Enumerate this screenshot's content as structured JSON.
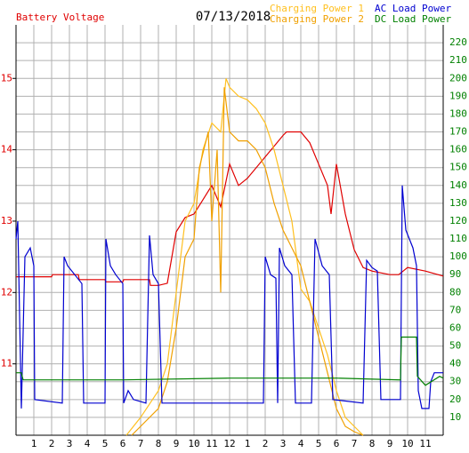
{
  "chart_data": {
    "type": "line",
    "date": "07/13/2018",
    "xlim": [
      0,
      24
    ],
    "xticks": [
      1,
      2,
      3,
      4,
      5,
      6,
      7,
      8,
      9,
      10,
      11,
      12,
      {
        "value": 13,
        "label": "1"
      },
      {
        "value": 14,
        "label": "2"
      },
      {
        "value": 15,
        "label": "3"
      },
      {
        "value": 16,
        "label": "4"
      },
      {
        "value": 17,
        "label": "5"
      },
      {
        "value": 18,
        "label": "6"
      },
      {
        "value": 19,
        "label": "7"
      },
      {
        "value": 20,
        "label": "8"
      },
      {
        "value": 21,
        "label": "9"
      },
      {
        "value": 22,
        "label": "10"
      },
      {
        "value": 23,
        "label": "11"
      }
    ],
    "ylim": [
      10,
      15.75
    ],
    "yticks": [
      11,
      12,
      13,
      14,
      15
    ],
    "y2lim": [
      0,
      230
    ],
    "y2ticks": [
      10,
      20,
      30,
      40,
      50,
      60,
      70,
      80,
      90,
      100,
      110,
      120,
      130,
      140,
      150,
      160,
      170,
      180,
      190,
      200,
      210,
      220
    ],
    "grid": true,
    "series": [
      {
        "name": "Battery Voltage",
        "color": "#e00000",
        "axis": "y",
        "x": [
          0,
          2,
          2.05,
          3.5,
          3.55,
          5,
          5.05,
          6,
          6.05,
          7.5,
          7.55,
          8,
          8.5,
          9,
          9.5,
          10,
          10.5,
          11,
          11.5,
          12,
          12.5,
          13,
          14,
          14.5,
          15,
          15.2,
          16,
          16.5,
          17,
          17.5,
          17.7,
          18,
          18.5,
          19,
          19.5,
          20,
          21,
          21.5,
          22,
          23,
          24
        ],
        "values": [
          12.22,
          12.22,
          12.25,
          12.25,
          12.18,
          12.18,
          12.15,
          12.15,
          12.18,
          12.18,
          12.1,
          12.1,
          12.13,
          12.85,
          13.05,
          13.1,
          13.3,
          13.5,
          13.2,
          13.8,
          13.5,
          13.6,
          13.9,
          14.05,
          14.2,
          14.25,
          14.25,
          14.1,
          13.8,
          13.5,
          13.1,
          13.8,
          13.1,
          12.6,
          12.35,
          12.3,
          12.25,
          12.25,
          12.35,
          12.3,
          12.23
        ]
      },
      {
        "name": "Charging Power 1",
        "color": "#ffc020",
        "axis": "y2",
        "x": [
          6.2,
          7,
          8,
          8.5,
          9,
          9.5,
          10,
          10.5,
          11,
          11.5,
          11.8,
          12,
          12.5,
          13,
          13.5,
          14,
          14.5,
          15,
          15.5,
          16,
          16.5,
          17,
          17.5,
          18,
          18.5,
          19,
          19.5
        ],
        "values": [
          0,
          10,
          25,
          40,
          80,
          120,
          130,
          160,
          175,
          170,
          200,
          195,
          190,
          188,
          183,
          175,
          160,
          140,
          120,
          82,
          75,
          60,
          45,
          25,
          10,
          5,
          0
        ]
      },
      {
        "name": "Charging Power 2",
        "color": "#f0a000",
        "axis": "y2",
        "x": [
          6.5,
          7,
          8,
          8.5,
          9,
          9.5,
          10,
          10.3,
          10.8,
          11,
          11.3,
          11.5,
          11.7,
          12,
          12.5,
          13,
          13.5,
          14,
          14.5,
          15,
          15.5,
          16,
          16.5,
          17,
          17.5,
          18,
          18.5,
          19,
          19.5
        ],
        "values": [
          0,
          5,
          15,
          30,
          60,
          100,
          110,
          150,
          170,
          120,
          160,
          80,
          195,
          170,
          165,
          165,
          160,
          150,
          130,
          115,
          105,
          95,
          75,
          55,
          35,
          15,
          5,
          2,
          0
        ]
      },
      {
        "name": "AC Load Power",
        "color": "#0000d0",
        "axis": "y2",
        "x": [
          0,
          0.1,
          0.3,
          0.5,
          0.8,
          1,
          1.05,
          2.6,
          2.7,
          2.9,
          3.7,
          3.8,
          5,
          5.05,
          5.3,
          5.6,
          6,
          6.05,
          6.3,
          6.6,
          7.3,
          7.5,
          7.7,
          8,
          8.2,
          13.9,
          14,
          14.3,
          14.6,
          14.7,
          14.8,
          15.1,
          15.5,
          15.7,
          16.6,
          16.8,
          17.2,
          17.6,
          17.8,
          19.5,
          19.7,
          20,
          20.3,
          20.5,
          21.6,
          21.7,
          21.9,
          22.3,
          22.5,
          22.6,
          22.8,
          23.2,
          23.3,
          23.5,
          24
        ],
        "values": [
          110,
          120,
          15,
          100,
          105,
          95,
          20,
          18,
          100,
          95,
          85,
          18,
          18,
          110,
          95,
          90,
          85,
          18,
          25,
          20,
          18,
          112,
          90,
          85,
          18,
          18,
          100,
          90,
          88,
          18,
          105,
          95,
          90,
          18,
          18,
          110,
          95,
          90,
          20,
          18,
          98,
          94,
          92,
          20,
          20,
          140,
          115,
          105,
          95,
          25,
          15,
          15,
          30,
          35,
          35
        ]
      },
      {
        "name": "DC Load Power",
        "color": "#008000",
        "axis": "y2",
        "x": [
          0,
          0.3,
          0.4,
          6,
          12,
          18,
          21.6,
          21.65,
          22.5,
          22.55,
          23,
          23.8,
          24
        ],
        "values": [
          35,
          35,
          31,
          31,
          32,
          32,
          31,
          55,
          55,
          33,
          28,
          33,
          32
        ]
      }
    ]
  }
}
